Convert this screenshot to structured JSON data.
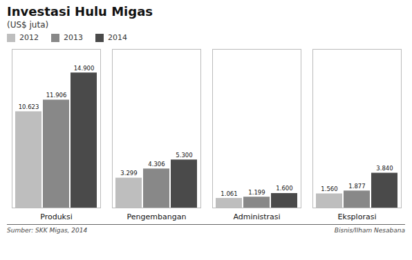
{
  "chart_data": {
    "type": "bar",
    "title": "Investasi Hulu Migas",
    "subtitle": "(US$ juta)",
    "categories": [
      "Produksi",
      "Pengembangan",
      "Administrasi",
      "Eksplorasi"
    ],
    "series": [
      {
        "name": "2012",
        "color": "#bebebe",
        "values": [
          10623,
          3299,
          1061,
          1560
        ],
        "value_labels": [
          "10.623",
          "3.299",
          "1.061",
          "1.560"
        ]
      },
      {
        "name": "2013",
        "color": "#888888",
        "values": [
          11906,
          4306,
          1199,
          1877
        ],
        "value_labels": [
          "11.906",
          "4.306",
          "1.199",
          "1.877"
        ]
      },
      {
        "name": "2014",
        "color": "#4a4a4a",
        "values": [
          14900,
          5300,
          1600,
          3840
        ],
        "value_labels": [
          "14.900",
          "5.300",
          "1.600",
          "3.840"
        ]
      }
    ],
    "ylim": [
      0,
      17500
    ],
    "tick_labels": "x",
    "data_labels": true,
    "grid": false,
    "legend": "top",
    "annotations": [
      "Sumber: SKK Migas, 2014",
      "Bisnis/Ilham Nesabana"
    ]
  }
}
